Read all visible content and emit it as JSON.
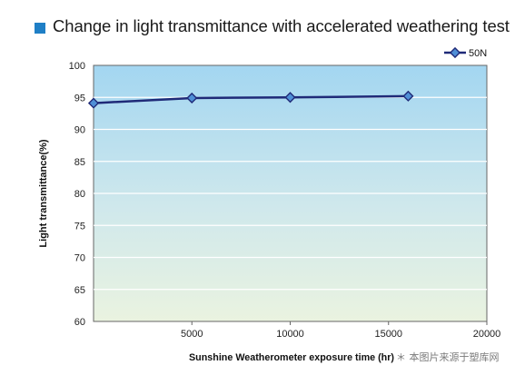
{
  "chart_data": {
    "type": "line",
    "title": "Change in light transmittance with accelerated weathering test",
    "xlabel": "Sunshine Weatherometer exposure time (hr)",
    "ylabel": "Light transmittance(%)",
    "xlim": [
      0,
      20000
    ],
    "ylim": [
      60,
      100
    ],
    "x_ticks": [
      5000,
      10000,
      15000,
      20000
    ],
    "y_ticks": [
      60,
      65,
      70,
      75,
      80,
      85,
      90,
      95,
      100
    ],
    "grid": "horizontal",
    "legend_position": "top-right",
    "series": [
      {
        "name": "50N",
        "color": "#1f2a78",
        "marker_fill": "#4f8fd6",
        "points": [
          {
            "x": 0,
            "y": 94.1
          },
          {
            "x": 5000,
            "y": 94.9
          },
          {
            "x": 10000,
            "y": 95.0
          },
          {
            "x": 16000,
            "y": 95.2
          }
        ]
      }
    ]
  },
  "watermark": "＊ 本图片来源于塑库网"
}
